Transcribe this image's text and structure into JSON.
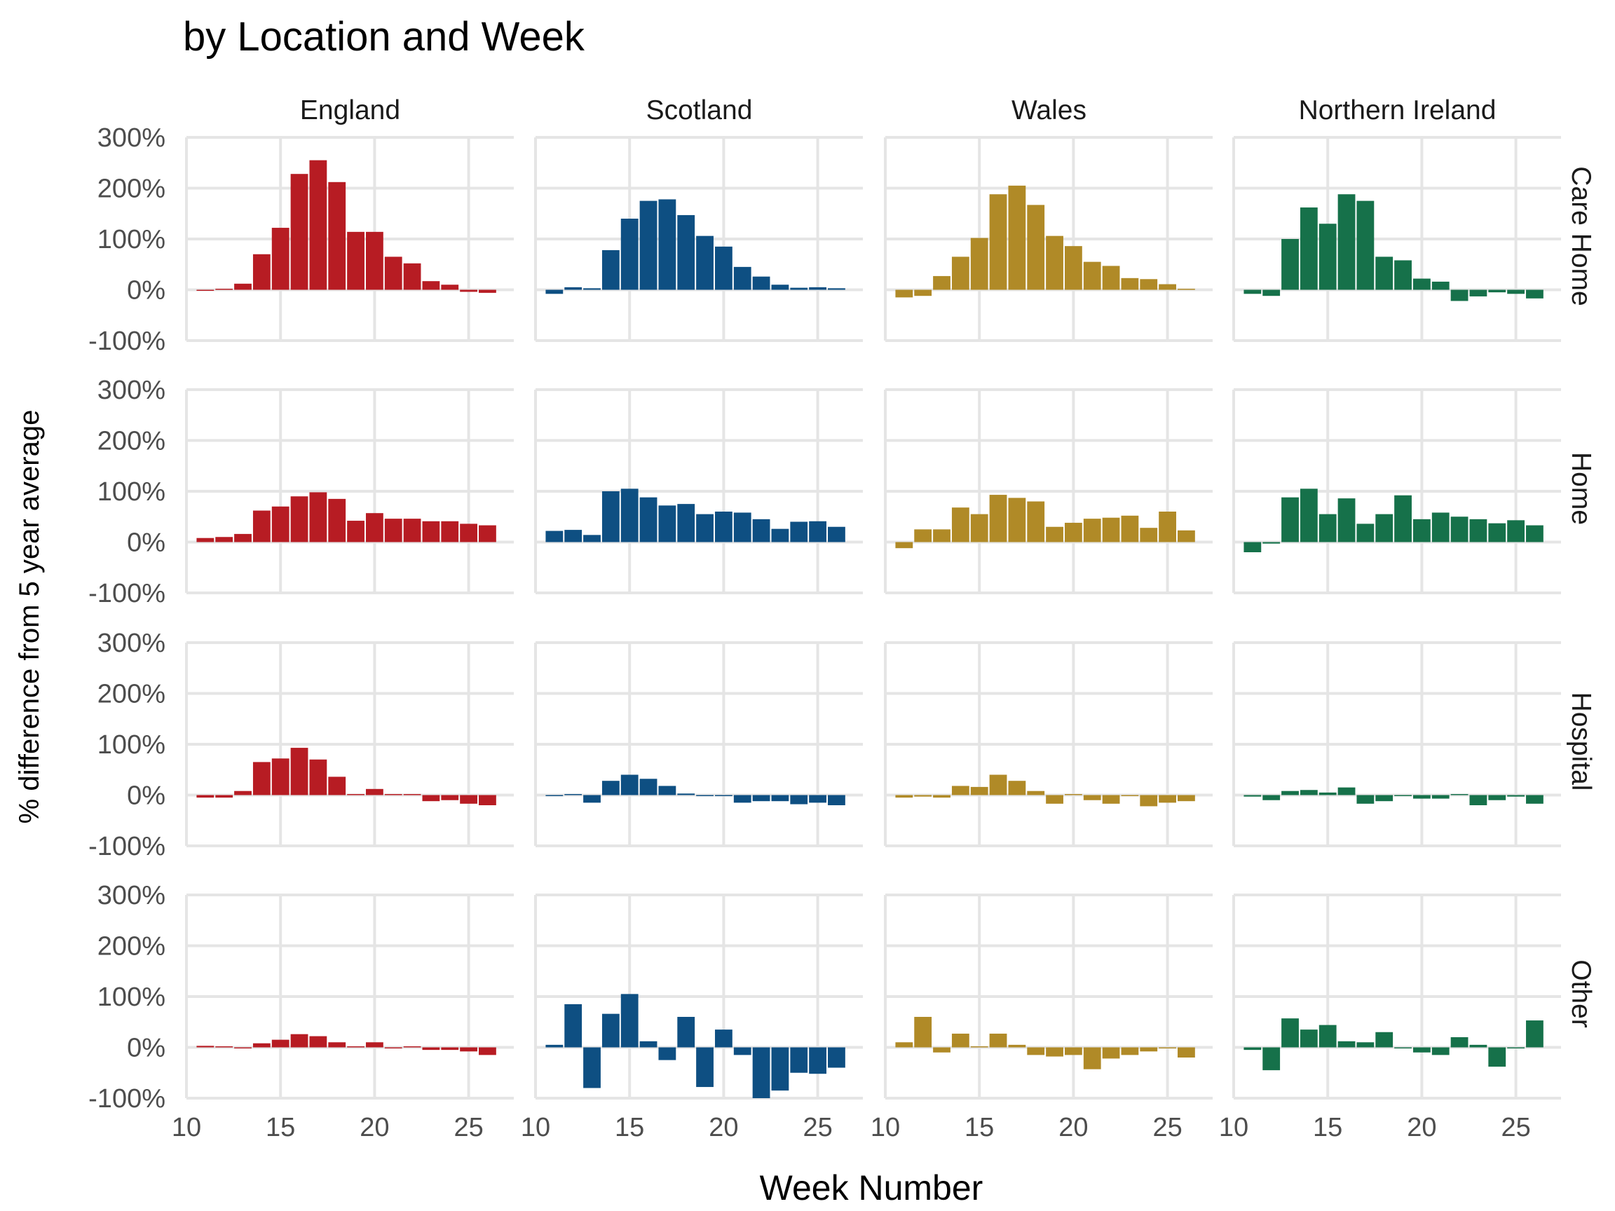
{
  "chart_data": {
    "type": "bar",
    "title": "by Location and Week",
    "xlabel": "Week Number",
    "ylabel": "% difference from 5 year average",
    "facet_columns": [
      "England",
      "Scotland",
      "Wales",
      "Northern Ireland"
    ],
    "facet_rows": [
      "Care Home",
      "Home",
      "Hospital",
      "Other"
    ],
    "x": [
      11,
      12,
      13,
      14,
      15,
      16,
      17,
      18,
      19,
      20,
      21,
      22,
      23,
      24,
      25,
      26
    ],
    "xlim": [
      10,
      27.4
    ],
    "x_ticks": [
      10,
      15,
      20,
      25
    ],
    "ylim": [
      -100,
      300
    ],
    "y_ticks": [
      -100,
      0,
      100,
      200,
      300
    ],
    "y_tick_labels": [
      "-100%",
      "0%",
      "100%",
      "200%",
      "300%"
    ],
    "x_tick_labels": [
      "10",
      "15",
      "20",
      "25"
    ],
    "grid": true,
    "legend": "none",
    "colors": {
      "England": "#b71c23",
      "Scotland": "#0e4f82",
      "Wales": "#b08a27",
      "Northern Ireland": "#16714a"
    },
    "series": [
      {
        "country": "England",
        "location": "Care Home",
        "values": [
          -2,
          2,
          12,
          70,
          122,
          228,
          255,
          212,
          114,
          114,
          65,
          52,
          17,
          10,
          -4,
          -6
        ]
      },
      {
        "country": "England",
        "location": "Home",
        "values": [
          8,
          10,
          16,
          62,
          70,
          90,
          98,
          85,
          42,
          57,
          46,
          46,
          41,
          41,
          36,
          33
        ]
      },
      {
        "country": "England",
        "location": "Hospital",
        "values": [
          -5,
          -5,
          8,
          65,
          72,
          93,
          70,
          36,
          2,
          12,
          2,
          2,
          -12,
          -10,
          -17,
          -20
        ]
      },
      {
        "country": "England",
        "location": "Other",
        "values": [
          3,
          2,
          -2,
          8,
          15,
          26,
          22,
          10,
          2,
          10,
          -2,
          2,
          -5,
          -5,
          -8,
          -15
        ]
      },
      {
        "country": "Scotland",
        "location": "Care Home",
        "values": [
          -8,
          5,
          3,
          78,
          140,
          175,
          178,
          147,
          106,
          85,
          45,
          26,
          10,
          4,
          5,
          3
        ]
      },
      {
        "country": "Scotland",
        "location": "Home",
        "values": [
          22,
          24,
          14,
          100,
          105,
          88,
          72,
          75,
          55,
          60,
          58,
          45,
          26,
          40,
          41,
          30
        ]
      },
      {
        "country": "Scotland",
        "location": "Hospital",
        "values": [
          -2,
          2,
          -15,
          28,
          40,
          32,
          18,
          3,
          0,
          -2,
          -15,
          -12,
          -12,
          -18,
          -15,
          -20
        ]
      },
      {
        "country": "Scotland",
        "location": "Other",
        "values": [
          5,
          85,
          -80,
          66,
          105,
          12,
          -25,
          60,
          -78,
          35,
          -15,
          -100,
          -85,
          -50,
          -52,
          -40
        ]
      },
      {
        "country": "Wales",
        "location": "Care Home",
        "values": [
          -15,
          -12,
          27,
          65,
          102,
          188,
          205,
          167,
          106,
          86,
          55,
          47,
          23,
          21,
          11,
          2
        ]
      },
      {
        "country": "Wales",
        "location": "Home",
        "values": [
          -12,
          25,
          25,
          68,
          55,
          93,
          87,
          80,
          30,
          38,
          46,
          48,
          52,
          28,
          60,
          23
        ]
      },
      {
        "country": "Wales",
        "location": "Hospital",
        "values": [
          -5,
          -3,
          -5,
          18,
          16,
          40,
          28,
          8,
          -17,
          2,
          -10,
          -17,
          -2,
          -22,
          -15,
          -12
        ]
      },
      {
        "country": "Wales",
        "location": "Other",
        "values": [
          10,
          60,
          -10,
          27,
          2,
          27,
          5,
          -15,
          -18,
          -15,
          -43,
          -22,
          -15,
          -8,
          0,
          -20
        ]
      },
      {
        "country": "Northern Ireland",
        "location": "Care Home",
        "values": [
          -8,
          -12,
          100,
          162,
          130,
          188,
          175,
          65,
          58,
          22,
          16,
          -22,
          -13,
          -5,
          -8,
          -17
        ]
      },
      {
        "country": "Northern Ireland",
        "location": "Home",
        "values": [
          -20,
          -3,
          88,
          105,
          55,
          86,
          36,
          55,
          92,
          45,
          58,
          50,
          45,
          37,
          43,
          33
        ]
      },
      {
        "country": "Northern Ireland",
        "location": "Hospital",
        "values": [
          -3,
          -10,
          8,
          10,
          5,
          15,
          -17,
          -12,
          0,
          -7,
          -7,
          2,
          -20,
          -10,
          -3,
          -17
        ]
      },
      {
        "country": "Northern Ireland",
        "location": "Other",
        "values": [
          -5,
          -45,
          57,
          35,
          44,
          12,
          10,
          30,
          0,
          -10,
          -15,
          20,
          5,
          -38,
          -2,
          53
        ]
      }
    ]
  }
}
